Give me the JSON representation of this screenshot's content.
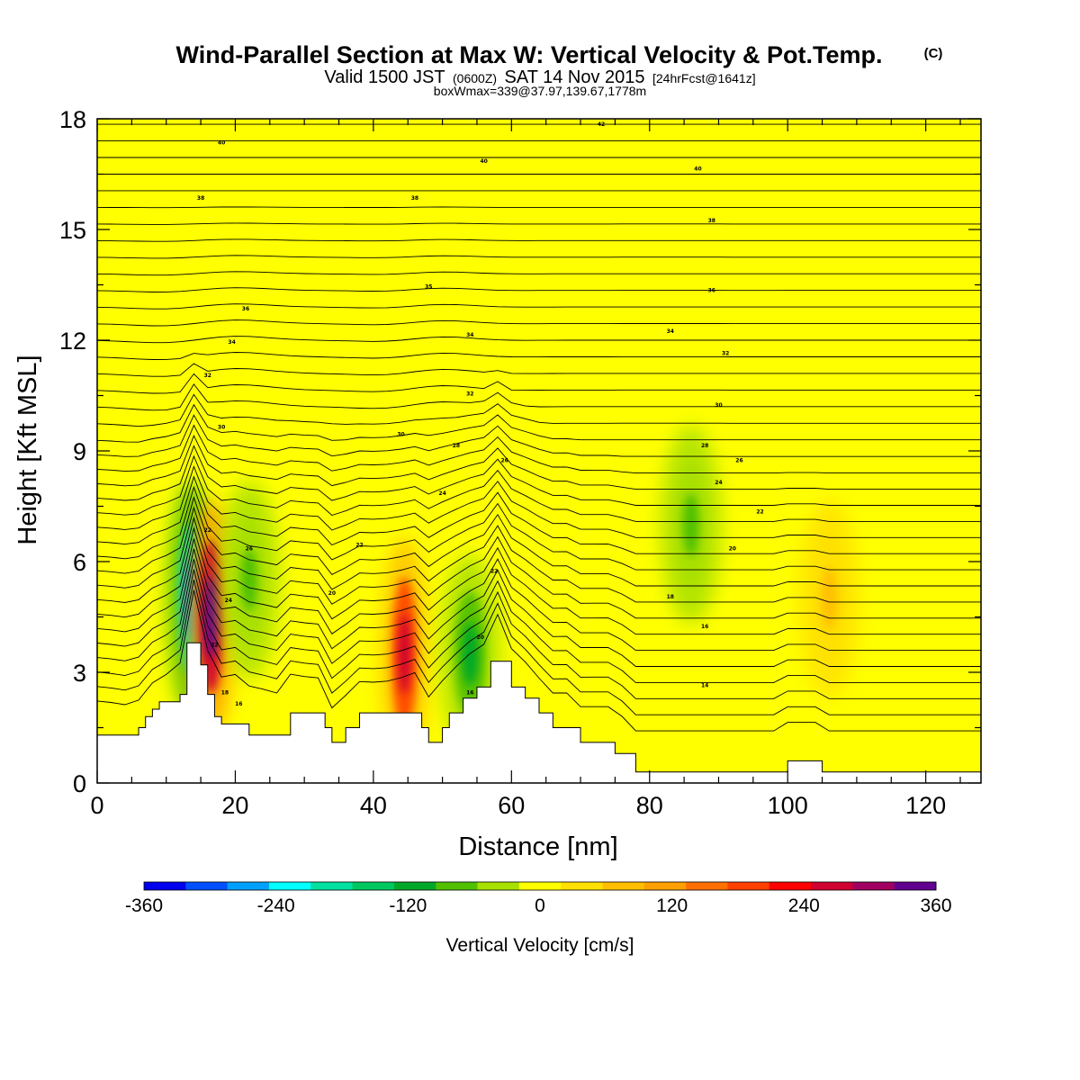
{
  "header": {
    "title": "Wind-Parallel Section at Max W: Vertical Velocity & Pot.Temp.",
    "copyright": "(C)",
    "valid_prefix": "Valid 1500 JST",
    "valid_zulu": "(0600Z)",
    "valid_date": "SAT 14 Nov 2015",
    "forecast": "[24hrFcst@1641z]",
    "boxmax": "boxWmax=339@37.97,139.67,1778m"
  },
  "chart_data": {
    "type": "heatmap",
    "title": "Wind-Parallel Section at Max W: Vertical Velocity & Pot.Temp.",
    "xlabel": "Distance [nm]",
    "ylabel": "Height [Kft MSL]",
    "xlim": [
      0,
      128
    ],
    "ylim": [
      0,
      18
    ],
    "x_ticks": [
      0,
      20,
      40,
      60,
      80,
      100,
      120
    ],
    "x_tick_labels": [
      "0",
      "20",
      "40",
      "60",
      "80",
      "100",
      "120"
    ],
    "y_ticks": [
      0,
      3,
      6,
      9,
      12,
      15,
      18
    ],
    "y_tick_labels": [
      "0",
      "3",
      "6",
      "9",
      "12",
      "15",
      "18"
    ],
    "colorbar": {
      "title": "Vertical Velocity [cm/s]",
      "min": -360,
      "max": 360,
      "tick_values": [
        -360,
        -240,
        -120,
        0,
        120,
        240,
        360
      ],
      "tick_labels": [
        "-360",
        "-240",
        "-120",
        "0",
        "120",
        "240",
        "360"
      ],
      "colors": [
        "#0000ee",
        "#0050ff",
        "#00a0ff",
        "#00ffff",
        "#00e0a0",
        "#00c860",
        "#00a828",
        "#50c000",
        "#a8e000",
        "#ffff00",
        "#ffe000",
        "#ffbf00",
        "#ff9f00",
        "#ff7000",
        "#ff4000",
        "#ff0000",
        "#d00030",
        "#a00060",
        "#600090"
      ]
    },
    "terrain_profile": {
      "x": [
        0,
        5,
        6,
        7,
        8,
        9,
        10,
        11,
        12,
        13,
        14,
        15,
        16,
        17,
        18,
        20,
        22,
        27,
        28,
        29,
        30,
        32,
        33,
        34,
        36,
        38,
        40,
        41,
        42,
        44,
        45,
        47,
        48,
        49,
        50,
        51,
        52,
        53,
        55,
        57,
        58,
        60,
        62,
        64,
        66,
        70,
        75,
        78,
        100,
        105,
        128
      ],
      "height_kft": [
        1.3,
        1.3,
        1.5,
        1.8,
        2.0,
        2.2,
        2.2,
        2.2,
        2.4,
        3.8,
        3.8,
        3.2,
        2.4,
        1.8,
        1.6,
        1.6,
        1.3,
        1.3,
        1.9,
        1.9,
        1.9,
        1.9,
        1.5,
        1.1,
        1.5,
        1.9,
        1.9,
        1.9,
        1.9,
        1.9,
        1.9,
        1.5,
        1.1,
        1.1,
        1.5,
        1.9,
        1.9,
        2.3,
        2.6,
        3.3,
        3.3,
        2.6,
        2.3,
        1.9,
        1.5,
        1.1,
        0.8,
        0.3,
        0.6,
        0.3,
        0.3
      ]
    },
    "features": [
      {
        "x": 13.5,
        "y_kft": 5.0,
        "w_cms": -270
      },
      {
        "x": 16.5,
        "y_kft": 4.5,
        "w_cms": 360
      },
      {
        "x": 22.0,
        "y_kft": 5.5,
        "w_cms": -60
      },
      {
        "x": 44.5,
        "y_kft": 3.5,
        "w_cms": 270
      },
      {
        "x": 54.0,
        "y_kft": 3.5,
        "w_cms": -120
      },
      {
        "x": 86.0,
        "y_kft": 7.0,
        "w_cms": -60
      },
      {
        "x": 106.0,
        "y_kft": 5.0,
        "w_cms": 60
      }
    ],
    "contour_labels": [
      {
        "x": 18.0,
        "y_kft": 17.3,
        "text": "40"
      },
      {
        "x": 15.0,
        "y_kft": 15.8,
        "text": "38"
      },
      {
        "x": 46.0,
        "y_kft": 15.8,
        "text": "38"
      },
      {
        "x": 56.0,
        "y_kft": 16.8,
        "text": "40"
      },
      {
        "x": 73.0,
        "y_kft": 17.8,
        "text": "42"
      },
      {
        "x": 87.0,
        "y_kft": 16.6,
        "text": "40"
      },
      {
        "x": 89.0,
        "y_kft": 15.2,
        "text": "38"
      },
      {
        "x": 21.5,
        "y_kft": 12.8,
        "text": "36"
      },
      {
        "x": 48.0,
        "y_kft": 13.4,
        "text": "35"
      },
      {
        "x": 89.0,
        "y_kft": 13.3,
        "text": "36"
      },
      {
        "x": 19.5,
        "y_kft": 11.9,
        "text": "34"
      },
      {
        "x": 54.0,
        "y_kft": 12.1,
        "text": "34"
      },
      {
        "x": 83.0,
        "y_kft": 12.2,
        "text": "34"
      },
      {
        "x": 16.0,
        "y_kft": 11.0,
        "text": "32"
      },
      {
        "x": 54.0,
        "y_kft": 10.5,
        "text": "32"
      },
      {
        "x": 91.0,
        "y_kft": 11.6,
        "text": "32"
      },
      {
        "x": 18.0,
        "y_kft": 9.6,
        "text": "30"
      },
      {
        "x": 44.0,
        "y_kft": 9.4,
        "text": "30"
      },
      {
        "x": 90.0,
        "y_kft": 10.2,
        "text": "30"
      },
      {
        "x": 52.0,
        "y_kft": 9.1,
        "text": "28"
      },
      {
        "x": 88.0,
        "y_kft": 9.1,
        "text": "28"
      },
      {
        "x": 59.0,
        "y_kft": 8.7,
        "text": "26"
      },
      {
        "x": 93.0,
        "y_kft": 8.7,
        "text": "26"
      },
      {
        "x": 50.0,
        "y_kft": 7.8,
        "text": "24"
      },
      {
        "x": 90.0,
        "y_kft": 8.1,
        "text": "24"
      },
      {
        "x": 16.0,
        "y_kft": 6.8,
        "text": "22"
      },
      {
        "x": 38.0,
        "y_kft": 6.4,
        "text": "22"
      },
      {
        "x": 96.0,
        "y_kft": 7.3,
        "text": "22"
      },
      {
        "x": 22.0,
        "y_kft": 6.3,
        "text": "26"
      },
      {
        "x": 57.5,
        "y_kft": 5.7,
        "text": "22"
      },
      {
        "x": 92.0,
        "y_kft": 6.3,
        "text": "20"
      },
      {
        "x": 19.0,
        "y_kft": 4.9,
        "text": "24"
      },
      {
        "x": 34.0,
        "y_kft": 5.1,
        "text": "20"
      },
      {
        "x": 83.0,
        "y_kft": 5.0,
        "text": "18"
      },
      {
        "x": 17.0,
        "y_kft": 3.7,
        "text": "22"
      },
      {
        "x": 55.5,
        "y_kft": 3.9,
        "text": "20"
      },
      {
        "x": 88.0,
        "y_kft": 4.2,
        "text": "16"
      },
      {
        "x": 18.5,
        "y_kft": 2.4,
        "text": "18"
      },
      {
        "x": 20.5,
        "y_kft": 2.1,
        "text": "16"
      },
      {
        "x": 54.0,
        "y_kft": 2.4,
        "text": "16"
      },
      {
        "x": 88.0,
        "y_kft": 2.6,
        "text": "14"
      }
    ]
  }
}
